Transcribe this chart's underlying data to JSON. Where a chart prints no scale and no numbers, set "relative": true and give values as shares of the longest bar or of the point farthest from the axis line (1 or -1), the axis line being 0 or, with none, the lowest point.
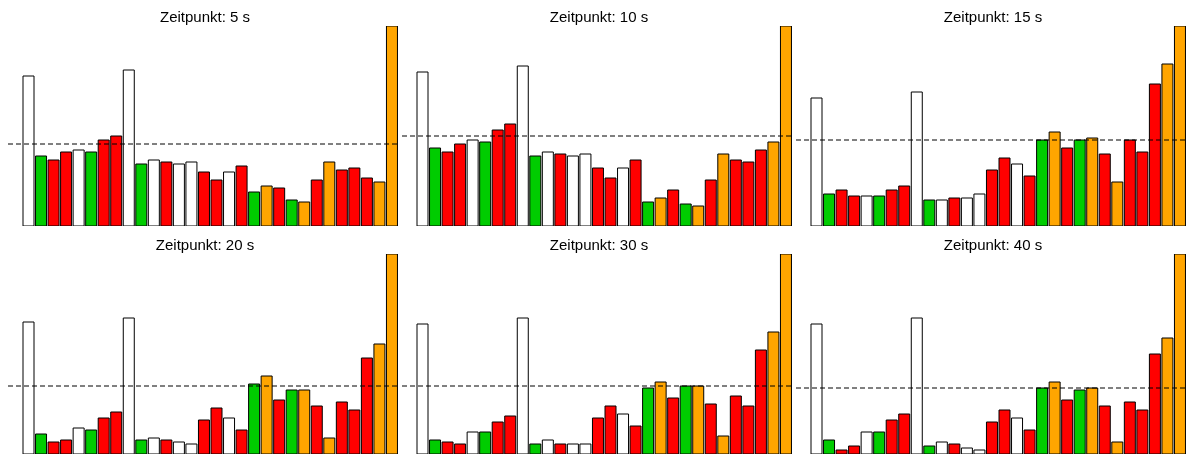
{
  "chart_data": [
    {
      "type": "bar",
      "title": "Zeitpunkt: 5 s",
      "relative": true,
      "tick_labels": false,
      "categories": [
        null,
        null,
        null,
        null,
        null,
        null,
        null,
        null,
        null,
        null,
        null,
        null,
        null,
        null,
        null,
        null,
        null,
        null,
        null,
        null,
        null,
        null,
        null,
        null,
        null,
        null,
        null,
        null,
        null,
        null
      ],
      "values": [
        0.75,
        0.35,
        0.33,
        0.37,
        0.38,
        0.37,
        0.43,
        0.45,
        0.78,
        0.31,
        0.33,
        0.32,
        0.31,
        0.32,
        0.27,
        0.23,
        0.27,
        0.3,
        0.17,
        0.2,
        0.19,
        0.13,
        0.12,
        0.23,
        0.32,
        0.28,
        0.29,
        0.24,
        0.22,
        1
      ],
      "colors": [
        "#ffffff",
        "#00cc00",
        "#ff0000",
        "#ff0000",
        "#ffffff",
        "#00cc00",
        "#ff0000",
        "#ff0000",
        "#ffffff",
        "#00cc00",
        "#ffffff",
        "#ff0000",
        "#ffffff",
        "#ffffff",
        "#ff0000",
        "#ff0000",
        "#ffffff",
        "#ff0000",
        "#00cc00",
        "#ffa500",
        "#ff0000",
        "#00cc00",
        "#ffa500",
        "#ff0000",
        "#ffa500",
        "#ff0000",
        "#ff0000",
        "#ff0000",
        "#ffa500",
        "#ffa500"
      ],
      "ref_lines": [
        {
          "axis": "y",
          "value": 0.41,
          "color": "#000000",
          "line_style": "dashed"
        }
      ]
    },
    {
      "type": "bar",
      "title": "Zeitpunkt: 10 s",
      "relative": true,
      "tick_labels": false,
      "categories": [
        null,
        null,
        null,
        null,
        null,
        null,
        null,
        null,
        null,
        null,
        null,
        null,
        null,
        null,
        null,
        null,
        null,
        null,
        null,
        null,
        null,
        null,
        null,
        null,
        null,
        null,
        null,
        null,
        null,
        null
      ],
      "values": [
        0.77,
        0.39,
        0.37,
        0.41,
        0.43,
        0.42,
        0.48,
        0.51,
        0.8,
        0.35,
        0.37,
        0.36,
        0.35,
        0.36,
        0.29,
        0.24,
        0.29,
        0.33,
        0.12,
        0.14,
        0.18,
        0.11,
        0.1,
        0.23,
        0.36,
        0.33,
        0.32,
        0.38,
        0.42,
        1
      ],
      "colors": [
        "#ffffff",
        "#00cc00",
        "#ff0000",
        "#ff0000",
        "#ffffff",
        "#00cc00",
        "#ff0000",
        "#ff0000",
        "#ffffff",
        "#00cc00",
        "#ffffff",
        "#ff0000",
        "#ffffff",
        "#ffffff",
        "#ff0000",
        "#ff0000",
        "#ffffff",
        "#ff0000",
        "#00cc00",
        "#ffa500",
        "#ff0000",
        "#00cc00",
        "#ffa500",
        "#ff0000",
        "#ffa500",
        "#ff0000",
        "#ff0000",
        "#ff0000",
        "#ffa500",
        "#ffa500"
      ],
      "ref_lines": [
        {
          "axis": "y",
          "value": 0.45,
          "color": "#000000",
          "line_style": "dashed"
        }
      ]
    },
    {
      "type": "bar",
      "title": "Zeitpunkt: 15 s",
      "relative": true,
      "tick_labels": false,
      "categories": [
        null,
        null,
        null,
        null,
        null,
        null,
        null,
        null,
        null,
        null,
        null,
        null,
        null,
        null,
        null,
        null,
        null,
        null,
        null,
        null,
        null,
        null,
        null,
        null,
        null,
        null,
        null,
        null,
        null,
        null
      ],
      "values": [
        0.64,
        0.16,
        0.18,
        0.15,
        0.15,
        0.15,
        0.18,
        0.2,
        0.67,
        0.13,
        0.13,
        0.14,
        0.14,
        0.16,
        0.28,
        0.34,
        0.31,
        0.25,
        0.43,
        0.47,
        0.39,
        0.43,
        0.44,
        0.36,
        0.22,
        0.43,
        0.37,
        0.71,
        0.81,
        1
      ],
      "colors": [
        "#ffffff",
        "#00cc00",
        "#ff0000",
        "#ff0000",
        "#ffffff",
        "#00cc00",
        "#ff0000",
        "#ff0000",
        "#ffffff",
        "#00cc00",
        "#ffffff",
        "#ff0000",
        "#ffffff",
        "#ffffff",
        "#ff0000",
        "#ff0000",
        "#ffffff",
        "#ff0000",
        "#00cc00",
        "#ffa500",
        "#ff0000",
        "#00cc00",
        "#ffa500",
        "#ff0000",
        "#ffa500",
        "#ff0000",
        "#ff0000",
        "#ff0000",
        "#ffa500",
        "#ffa500"
      ],
      "ref_lines": [
        {
          "axis": "y",
          "value": 0.43,
          "color": "#000000",
          "line_style": "dashed"
        }
      ]
    },
    {
      "type": "bar",
      "title": "Zeitpunkt: 20 s",
      "relative": true,
      "tick_labels": false,
      "categories": [
        null,
        null,
        null,
        null,
        null,
        null,
        null,
        null,
        null,
        null,
        null,
        null,
        null,
        null,
        null,
        null,
        null,
        null,
        null,
        null,
        null,
        null,
        null,
        null,
        null,
        null,
        null,
        null,
        null,
        null
      ],
      "values": [
        0.66,
        0.1,
        0.06,
        0.07,
        0.13,
        0.12,
        0.18,
        0.21,
        0.68,
        0.07,
        0.08,
        0.07,
        0.06,
        0.05,
        0.17,
        0.23,
        0.18,
        0.12,
        0.35,
        0.39,
        0.27,
        0.32,
        0.32,
        0.24,
        0.08,
        0.26,
        0.22,
        0.48,
        0.55,
        1
      ],
      "colors": [
        "#ffffff",
        "#00cc00",
        "#ff0000",
        "#ff0000",
        "#ffffff",
        "#00cc00",
        "#ff0000",
        "#ff0000",
        "#ffffff",
        "#00cc00",
        "#ffffff",
        "#ff0000",
        "#ffffff",
        "#ffffff",
        "#ff0000",
        "#ff0000",
        "#ffffff",
        "#ff0000",
        "#00cc00",
        "#ffa500",
        "#ff0000",
        "#00cc00",
        "#ffa500",
        "#ff0000",
        "#ffa500",
        "#ff0000",
        "#ff0000",
        "#ff0000",
        "#ffa500",
        "#ffa500"
      ],
      "ref_lines": [
        {
          "axis": "y",
          "value": 0.34,
          "color": "#000000",
          "line_style": "dashed"
        }
      ]
    },
    {
      "type": "bar",
      "title": "Zeitpunkt: 30 s",
      "relative": true,
      "tick_labels": false,
      "categories": [
        null,
        null,
        null,
        null,
        null,
        null,
        null,
        null,
        null,
        null,
        null,
        null,
        null,
        null,
        null,
        null,
        null,
        null,
        null,
        null,
        null,
        null,
        null,
        null,
        null,
        null,
        null,
        null,
        null,
        null
      ],
      "values": [
        0.65,
        0.07,
        0.06,
        0.05,
        0.11,
        0.11,
        0.16,
        0.19,
        0.68,
        0.05,
        0.07,
        0.05,
        0.05,
        0.05,
        0.18,
        0.24,
        0.2,
        0.14,
        0.33,
        0.36,
        0.28,
        0.34,
        0.34,
        0.25,
        0.09,
        0.29,
        0.24,
        0.52,
        0.61,
        1
      ],
      "colors": [
        "#ffffff",
        "#00cc00",
        "#ff0000",
        "#ff0000",
        "#ffffff",
        "#00cc00",
        "#ff0000",
        "#ff0000",
        "#ffffff",
        "#00cc00",
        "#ffffff",
        "#ff0000",
        "#ffffff",
        "#ffffff",
        "#ff0000",
        "#ff0000",
        "#ffffff",
        "#ff0000",
        "#00cc00",
        "#ffa500",
        "#ff0000",
        "#00cc00",
        "#ffa500",
        "#ff0000",
        "#ffa500",
        "#ff0000",
        "#ff0000",
        "#ff0000",
        "#ffa500",
        "#ffa500"
      ],
      "ref_lines": [
        {
          "axis": "y",
          "value": 0.34,
          "color": "#000000",
          "line_style": "dashed"
        }
      ]
    },
    {
      "type": "bar",
      "title": "Zeitpunkt: 40 s",
      "relative": true,
      "tick_labels": false,
      "categories": [
        null,
        null,
        null,
        null,
        null,
        null,
        null,
        null,
        null,
        null,
        null,
        null,
        null,
        null,
        null,
        null,
        null,
        null,
        null,
        null,
        null,
        null,
        null,
        null,
        null,
        null,
        null,
        null,
        null,
        null
      ],
      "values": [
        0.65,
        0.07,
        0.02,
        0.04,
        0.11,
        0.11,
        0.17,
        0.2,
        0.68,
        0.04,
        0.06,
        0.05,
        0.03,
        0.02,
        0.16,
        0.22,
        0.18,
        0.12,
        0.33,
        0.36,
        0.27,
        0.32,
        0.33,
        0.24,
        0.06,
        0.26,
        0.22,
        0.5,
        0.58,
        1
      ],
      "colors": [
        "#ffffff",
        "#00cc00",
        "#ff0000",
        "#ff0000",
        "#ffffff",
        "#00cc00",
        "#ff0000",
        "#ff0000",
        "#ffffff",
        "#00cc00",
        "#ffffff",
        "#ff0000",
        "#ffffff",
        "#ffffff",
        "#ff0000",
        "#ff0000",
        "#ffffff",
        "#ff0000",
        "#00cc00",
        "#ffa500",
        "#ff0000",
        "#00cc00",
        "#ffa500",
        "#ff0000",
        "#ffa500",
        "#ff0000",
        "#ff0000",
        "#ff0000",
        "#ffa500",
        "#ffa500"
      ],
      "ref_lines": [
        {
          "axis": "y",
          "value": 0.33,
          "color": "#000000",
          "line_style": "dashed"
        }
      ]
    }
  ]
}
